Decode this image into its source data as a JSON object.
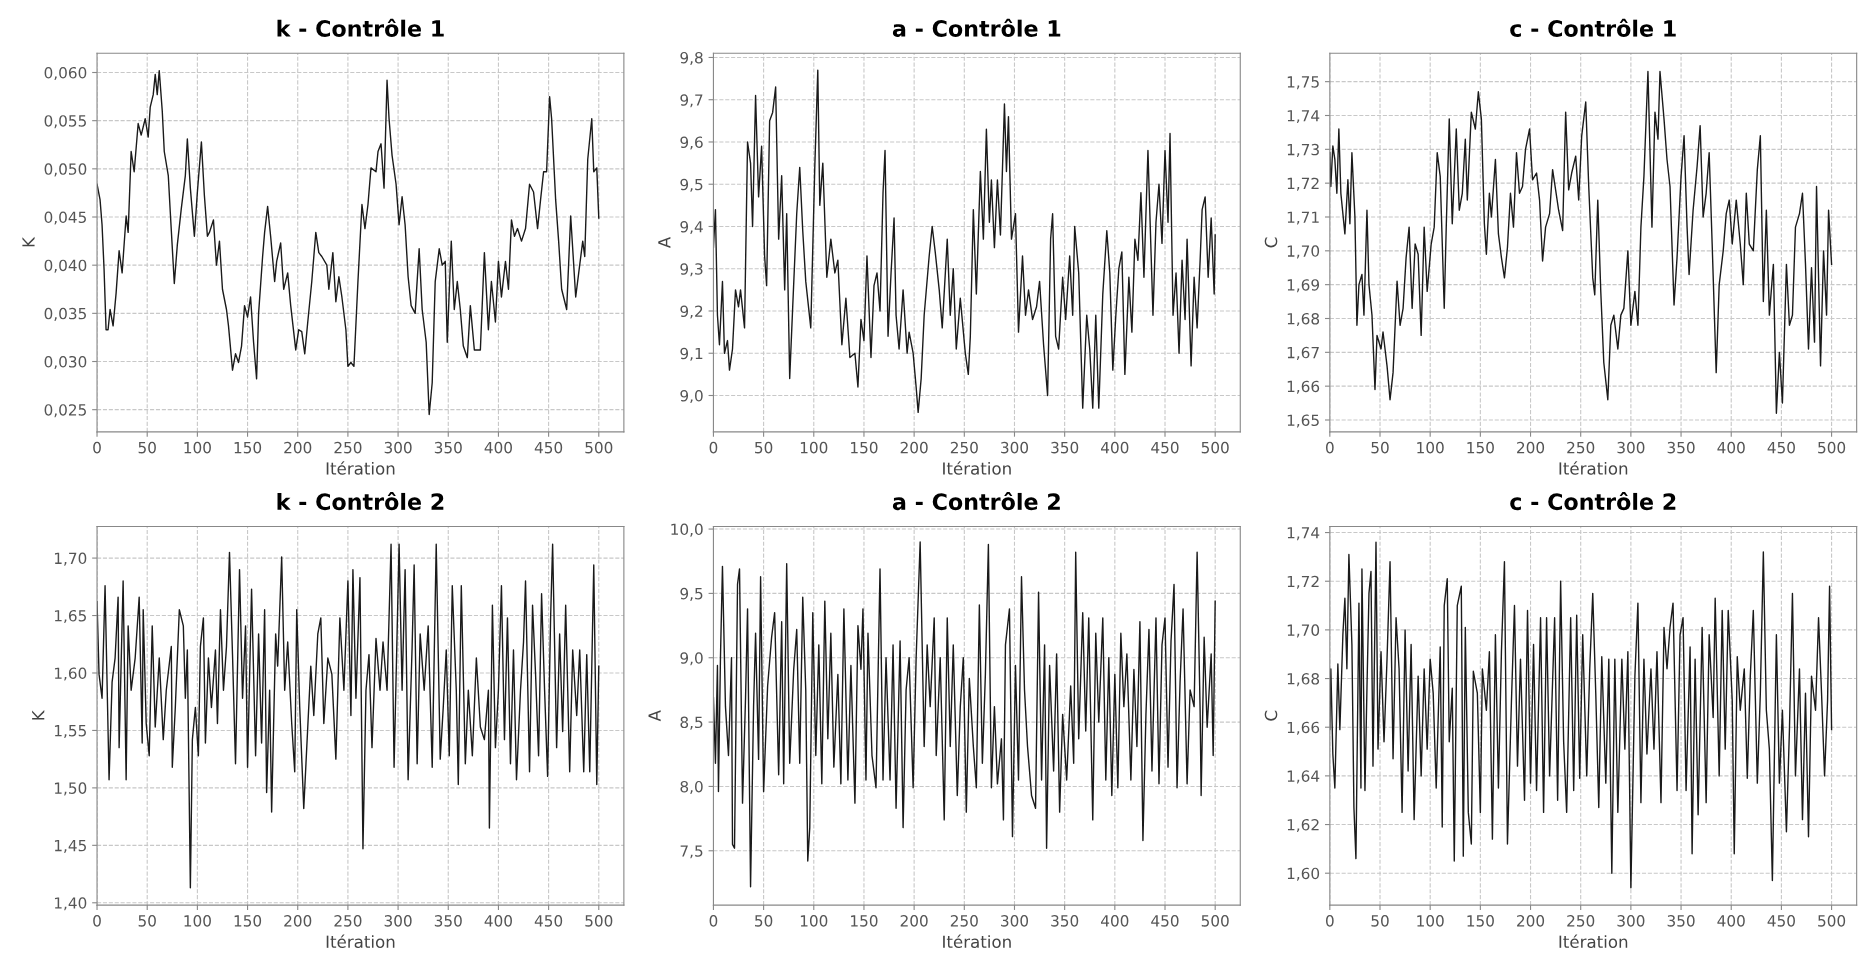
{
  "chart_data": [
    {
      "type": "line",
      "title": "k - Contrôle 1",
      "xlabel": "Itération",
      "ylabel": "K",
      "grid": true,
      "xlim": [
        0,
        525
      ],
      "xticks": [
        0,
        50,
        100,
        150,
        200,
        250,
        300,
        350,
        400,
        450,
        500
      ],
      "ylim": [
        0.0227,
        0.062
      ],
      "yticks": [
        {
          "value": 0.025,
          "label": "0,025"
        },
        {
          "value": 0.03,
          "label": "0,030"
        },
        {
          "value": 0.035,
          "label": "0,035"
        },
        {
          "value": 0.04,
          "label": "0,040"
        },
        {
          "value": 0.045,
          "label": "0,045"
        },
        {
          "value": 0.05,
          "label": "0,050"
        },
        {
          "value": 0.055,
          "label": "0,055"
        },
        {
          "value": 0.06,
          "label": "0,060"
        }
      ],
      "x": [
        0,
        3,
        5,
        7,
        9,
        11,
        13,
        16,
        19,
        22,
        25,
        29,
        31,
        34,
        37,
        41,
        44,
        48,
        51,
        53,
        56,
        58,
        60,
        62,
        65,
        67,
        71,
        73,
        77,
        80,
        84,
        88,
        90,
        93,
        97,
        100,
        104,
        107,
        110,
        112,
        116,
        119,
        122,
        125,
        129,
        131,
        135,
        138,
        141,
        144,
        147,
        150,
        153,
        156,
        159,
        161,
        165,
        167,
        170,
        173,
        177,
        179,
        183,
        186,
        190,
        193,
        198,
        201,
        204,
        207,
        210,
        214,
        218,
        221,
        224,
        229,
        231,
        235,
        238,
        241,
        244,
        248,
        250,
        253,
        256,
        260,
        264,
        267,
        270,
        273,
        278,
        280,
        283,
        286,
        289,
        291,
        294,
        298,
        301,
        304,
        307,
        310,
        313,
        317,
        321,
        324,
        328,
        331,
        334,
        337,
        341,
        344,
        347,
        349,
        353,
        356,
        359,
        362,
        365,
        369,
        372,
        376,
        380,
        382,
        386,
        390,
        393,
        397,
        400,
        403,
        407,
        410,
        413,
        416,
        419,
        423,
        427,
        431,
        435,
        439,
        442,
        445,
        448,
        451,
        453,
        457,
        460,
        463,
        468,
        472,
        477,
        480,
        484,
        486,
        489,
        493,
        495,
        498,
        500
      ],
      "series": [
        {
          "color": "#1a1a1a",
          "values": [
            0.0484,
            0.0468,
            0.0442,
            0.0396,
            0.0333,
            0.0333,
            0.0354,
            0.0337,
            0.0371,
            0.0415,
            0.0392,
            0.0451,
            0.0434,
            0.0518,
            0.0497,
            0.0547,
            0.0535,
            0.0552,
            0.0533,
            0.0564,
            0.0577,
            0.0598,
            0.0577,
            0.0602,
            0.056,
            0.0518,
            0.0493,
            0.0455,
            0.0381,
            0.0421,
            0.0459,
            0.0493,
            0.0531,
            0.048,
            0.043,
            0.0476,
            0.0528,
            0.0472,
            0.043,
            0.0434,
            0.0447,
            0.04,
            0.0425,
            0.0375,
            0.0354,
            0.0337,
            0.0291,
            0.0308,
            0.0299,
            0.0316,
            0.0358,
            0.0346,
            0.0367,
            0.032,
            0.0282,
            0.035,
            0.0409,
            0.0434,
            0.0461,
            0.043,
            0.0383,
            0.0404,
            0.0423,
            0.0375,
            0.0392,
            0.0358,
            0.0312,
            0.0333,
            0.0331,
            0.0308,
            0.0341,
            0.0383,
            0.0434,
            0.0413,
            0.0409,
            0.04,
            0.0375,
            0.0413,
            0.0362,
            0.0388,
            0.0367,
            0.0333,
            0.0295,
            0.0299,
            0.0295,
            0.0383,
            0.0463,
            0.0438,
            0.0463,
            0.0501,
            0.0497,
            0.0518,
            0.0526,
            0.048,
            0.0592,
            0.0552,
            0.0514,
            0.0484,
            0.0442,
            0.0471,
            0.0442,
            0.0388,
            0.0358,
            0.035,
            0.0417,
            0.0354,
            0.032,
            0.0245,
            0.0278,
            0.0383,
            0.0417,
            0.04,
            0.0404,
            0.032,
            0.0425,
            0.0354,
            0.0383,
            0.0354,
            0.0316,
            0.0304,
            0.0358,
            0.0312,
            0.0312,
            0.0312,
            0.0413,
            0.0333,
            0.0383,
            0.0341,
            0.0404,
            0.0367,
            0.0404,
            0.0375,
            0.0447,
            0.043,
            0.0438,
            0.0425,
            0.0438,
            0.0484,
            0.0476,
            0.0438,
            0.0468,
            0.0497,
            0.0497,
            0.0575,
            0.0552,
            0.0468,
            0.0425,
            0.0375,
            0.0354,
            0.0451,
            0.0367,
            0.0392,
            0.0425,
            0.0409,
            0.051,
            0.0552,
            0.0497,
            0.0501,
            0.0449
          ]
        }
      ]
    },
    {
      "type": "line",
      "title": "a - Contrôle 1",
      "xlabel": "Itération",
      "ylabel": "A",
      "grid": true,
      "xlim": [
        0,
        525
      ],
      "xticks": [
        0,
        50,
        100,
        150,
        200,
        250,
        300,
        350,
        400,
        450,
        500
      ],
      "ylim": [
        8.914,
        9.81
      ],
      "yticks": [
        {
          "value": 9.0,
          "label": "9,0"
        },
        {
          "value": 9.1,
          "label": "9,1"
        },
        {
          "value": 9.2,
          "label": "9,2"
        },
        {
          "value": 9.3,
          "label": "9,3"
        },
        {
          "value": 9.4,
          "label": "9,4"
        },
        {
          "value": 9.5,
          "label": "9,5"
        },
        {
          "value": 9.6,
          "label": "9,6"
        },
        {
          "value": 9.7,
          "label": "9,7"
        },
        {
          "value": 9.8,
          "label": "9,8"
        }
      ],
      "x": [
        0,
        2,
        4,
        6,
        9,
        11,
        14,
        16,
        19,
        22,
        25,
        27,
        31,
        34,
        37,
        39,
        42,
        45,
        48,
        51,
        53,
        56,
        59,
        62,
        65,
        68,
        71,
        73,
        76,
        79,
        83,
        86,
        89,
        92,
        97,
        101,
        104,
        106,
        109,
        113,
        117,
        121,
        124,
        128,
        132,
        136,
        141,
        144,
        147,
        150,
        153,
        157,
        160,
        163,
        166,
        169,
        171,
        174,
        177,
        180,
        182,
        185,
        189,
        193,
        195,
        199,
        202,
        204,
        207,
        210,
        215,
        218,
        221,
        225,
        228,
        233,
        236,
        239,
        242,
        246,
        251,
        254,
        256,
        259,
        262,
        266,
        269,
        272,
        275,
        277,
        280,
        283,
        286,
        290,
        292,
        294,
        297,
        301,
        304,
        308,
        311,
        314,
        318,
        322,
        325,
        329,
        333,
        336,
        338,
        341,
        344,
        348,
        351,
        355,
        358,
        360,
        364,
        368,
        372,
        375,
        378,
        381,
        384,
        388,
        392,
        395,
        398,
        401,
        404,
        407,
        410,
        414,
        417,
        420,
        423,
        426,
        429,
        433,
        438,
        441,
        444,
        447,
        450,
        453,
        455,
        458,
        461,
        464,
        467,
        470,
        472,
        476,
        479,
        482,
        485,
        487,
        490,
        493,
        496,
        499,
        500
      ],
      "series": [
        {
          "color": "#1a1a1a",
          "values": [
            9.35,
            9.44,
            9.19,
            9.12,
            9.27,
            9.1,
            9.13,
            9.06,
            9.11,
            9.25,
            9.21,
            9.25,
            9.16,
            9.6,
            9.55,
            9.4,
            9.71,
            9.47,
            9.59,
            9.33,
            9.26,
            9.65,
            9.67,
            9.73,
            9.37,
            9.52,
            9.25,
            9.43,
            9.04,
            9.21,
            9.43,
            9.54,
            9.39,
            9.27,
            9.16,
            9.54,
            9.77,
            9.45,
            9.55,
            9.28,
            9.37,
            9.29,
            9.32,
            9.12,
            9.23,
            9.09,
            9.1,
            9.02,
            9.18,
            9.13,
            9.33,
            9.09,
            9.26,
            9.29,
            9.2,
            9.48,
            9.58,
            9.14,
            9.29,
            9.42,
            9.19,
            9.11,
            9.25,
            9.1,
            9.15,
            9.1,
            9.02,
            8.96,
            9.04,
            9.19,
            9.33,
            9.4,
            9.34,
            9.25,
            9.16,
            9.37,
            9.19,
            9.3,
            9.11,
            9.23,
            9.1,
            9.05,
            9.14,
            9.44,
            9.24,
            9.53,
            9.37,
            9.63,
            9.41,
            9.51,
            9.35,
            9.51,
            9.38,
            9.69,
            9.53,
            9.66,
            9.37,
            9.43,
            9.15,
            9.33,
            9.19,
            9.25,
            9.18,
            9.21,
            9.27,
            9.12,
            9.0,
            9.37,
            9.43,
            9.14,
            9.11,
            9.28,
            9.18,
            9.33,
            9.19,
            9.4,
            9.29,
            8.97,
            9.19,
            9.11,
            8.97,
            9.19,
            8.97,
            9.24,
            9.39,
            9.29,
            9.06,
            9.19,
            9.3,
            9.34,
            9.05,
            9.28,
            9.15,
            9.37,
            9.32,
            9.48,
            9.28,
            9.58,
            9.19,
            9.41,
            9.5,
            9.36,
            9.58,
            9.41,
            9.62,
            9.19,
            9.29,
            9.1,
            9.32,
            9.18,
            9.37,
            9.07,
            9.28,
            9.16,
            9.32,
            9.44,
            9.47,
            9.28,
            9.42,
            9.24,
            9.38
          ]
        }
      ]
    },
    {
      "type": "line",
      "title": "c - Contrôle 1",
      "xlabel": "Itération",
      "ylabel": "C",
      "grid": true,
      "xlim": [
        0,
        525
      ],
      "xticks": [
        0,
        50,
        100,
        150,
        200,
        250,
        300,
        350,
        400,
        450,
        500
      ],
      "ylim": [
        1.6465,
        1.7584
      ],
      "yticks": [
        {
          "value": 1.65,
          "label": "1,65"
        },
        {
          "value": 1.66,
          "label": "1,66"
        },
        {
          "value": 1.67,
          "label": "1,67"
        },
        {
          "value": 1.68,
          "label": "1,68"
        },
        {
          "value": 1.69,
          "label": "1,69"
        },
        {
          "value": 1.7,
          "label": "1,70"
        },
        {
          "value": 1.71,
          "label": "1,71"
        },
        {
          "value": 1.72,
          "label": "1,72"
        },
        {
          "value": 1.73,
          "label": "1,73"
        },
        {
          "value": 1.74,
          "label": "1,74"
        },
        {
          "value": 1.75,
          "label": "1,75"
        }
      ],
      "x": [
        0,
        1,
        3,
        5,
        7,
        9,
        11,
        13,
        15,
        18,
        20,
        22,
        25,
        27,
        29,
        32,
        34,
        37,
        39,
        42,
        45,
        47,
        51,
        53,
        57,
        60,
        63,
        67,
        70,
        73,
        76,
        79,
        82,
        85,
        88,
        91,
        94,
        97,
        101,
        104,
        107,
        110,
        114,
        116,
        119,
        122,
        126,
        129,
        132,
        135,
        137,
        141,
        145,
        148,
        151,
        154,
        156,
        159,
        161,
        165,
        168,
        171,
        174,
        177,
        180,
        183,
        186,
        189,
        192,
        195,
        199,
        202,
        206,
        209,
        212,
        215,
        219,
        222,
        225,
        228,
        232,
        235,
        238,
        241,
        245,
        248,
        251,
        255,
        258,
        262,
        264,
        267,
        270,
        273,
        277,
        280,
        283,
        287,
        290,
        293,
        297,
        300,
        304,
        307,
        310,
        313,
        317,
        321,
        324,
        327,
        329,
        333,
        336,
        339,
        343,
        346,
        350,
        353,
        356,
        358,
        362,
        366,
        369,
        372,
        375,
        378,
        381,
        385,
        388,
        392,
        395,
        398,
        401,
        405,
        409,
        412,
        415,
        418,
        422,
        426,
        429,
        432,
        435,
        438,
        442,
        445,
        448,
        451,
        455,
        458,
        461,
        464,
        468,
        471,
        474,
        477,
        480,
        483,
        485,
        489,
        492,
        495,
        497,
        500
      ],
      "series": [
        {
          "color": "#1a1a1a",
          "values": [
            1.729,
            1.719,
            1.731,
            1.727,
            1.717,
            1.736,
            1.717,
            1.711,
            1.705,
            1.721,
            1.708,
            1.729,
            1.71,
            1.678,
            1.69,
            1.693,
            1.681,
            1.712,
            1.69,
            1.681,
            1.659,
            1.675,
            1.671,
            1.676,
            1.666,
            1.656,
            1.664,
            1.691,
            1.678,
            1.683,
            1.698,
            1.707,
            1.683,
            1.702,
            1.699,
            1.675,
            1.707,
            1.688,
            1.702,
            1.707,
            1.729,
            1.722,
            1.683,
            1.707,
            1.739,
            1.708,
            1.736,
            1.712,
            1.717,
            1.733,
            1.715,
            1.741,
            1.736,
            1.747,
            1.739,
            1.708,
            1.699,
            1.717,
            1.71,
            1.727,
            1.705,
            1.698,
            1.692,
            1.701,
            1.717,
            1.707,
            1.729,
            1.717,
            1.719,
            1.73,
            1.736,
            1.721,
            1.723,
            1.715,
            1.697,
            1.707,
            1.711,
            1.724,
            1.718,
            1.712,
            1.706,
            1.741,
            1.718,
            1.723,
            1.728,
            1.715,
            1.734,
            1.744,
            1.719,
            1.692,
            1.687,
            1.715,
            1.688,
            1.667,
            1.656,
            1.678,
            1.681,
            1.671,
            1.681,
            1.683,
            1.7,
            1.678,
            1.688,
            1.678,
            1.707,
            1.722,
            1.753,
            1.707,
            1.741,
            1.733,
            1.753,
            1.739,
            1.727,
            1.719,
            1.684,
            1.698,
            1.722,
            1.734,
            1.707,
            1.693,
            1.712,
            1.725,
            1.737,
            1.71,
            1.717,
            1.729,
            1.702,
            1.664,
            1.69,
            1.7,
            1.711,
            1.715,
            1.702,
            1.715,
            1.702,
            1.69,
            1.717,
            1.702,
            1.7,
            1.724,
            1.734,
            1.685,
            1.712,
            1.681,
            1.696,
            1.652,
            1.67,
            1.655,
            1.696,
            1.678,
            1.681,
            1.707,
            1.711,
            1.717,
            1.696,
            1.671,
            1.695,
            1.673,
            1.719,
            1.666,
            1.7,
            1.681,
            1.712,
            1.696
          ]
        }
      ]
    },
    {
      "type": "line",
      "title": "k - Contrôle 2",
      "xlabel": "Itération",
      "ylabel": "K",
      "grid": true,
      "xlim": [
        0,
        525
      ],
      "xticks": [
        0,
        50,
        100,
        150,
        200,
        250,
        300,
        350,
        400,
        450,
        500
      ],
      "ylim": [
        1.398,
        1.7275
      ],
      "yticks": [
        {
          "value": 1.4,
          "label": "1,40"
        },
        {
          "value": 1.45,
          "label": "1,45"
        },
        {
          "value": 1.5,
          "label": "1,50"
        },
        {
          "value": 1.55,
          "label": "1,55"
        },
        {
          "value": 1.6,
          "label": "1,60"
        },
        {
          "value": 1.65,
          "label": "1,65"
        },
        {
          "value": 1.7,
          "label": "1,70"
        }
      ],
      "x": [
        0,
        2,
        5,
        8,
        12,
        15,
        18,
        21,
        22,
        26,
        29,
        31,
        34,
        38,
        42,
        45,
        46,
        49,
        52,
        55,
        58,
        62,
        66,
        69,
        74,
        75,
        78,
        82,
        86,
        88,
        90,
        93,
        95,
        98,
        101,
        103,
        106,
        108,
        111,
        114,
        118,
        120,
        123,
        126,
        129,
        132,
        135,
        138,
        142,
        145,
        148,
        150,
        154,
        158,
        161,
        164,
        167,
        169,
        172,
        174,
        178,
        180,
        184,
        187,
        190,
        194,
        197,
        199,
        202,
        206,
        210,
        213,
        216,
        220,
        223,
        226,
        230,
        234,
        238,
        242,
        246,
        250,
        253,
        255,
        258,
        262,
        265,
        268,
        271,
        274,
        278,
        282,
        285,
        289,
        293,
        296,
        299,
        301,
        304,
        307,
        310,
        314,
        316,
        319,
        322,
        326,
        330,
        334,
        338,
        342,
        345,
        348,
        351,
        354,
        358,
        360,
        363,
        367,
        370,
        374,
        378,
        382,
        386,
        390,
        391,
        394,
        397,
        400,
        403,
        406,
        409,
        412,
        415,
        418,
        422,
        425,
        427,
        431,
        434,
        437,
        440,
        443,
        446,
        449,
        452,
        454,
        458,
        461,
        464,
        467,
        471,
        474,
        478,
        481,
        485,
        488,
        491,
        495,
        498,
        500
      ],
      "series": [
        {
          "color": "#1a1a1a",
          "values": [
            1.662,
            1.599,
            1.578,
            1.676,
            1.507,
            1.592,
            1.613,
            1.666,
            1.535,
            1.68,
            1.507,
            1.641,
            1.585,
            1.613,
            1.666,
            1.539,
            1.655,
            1.556,
            1.528,
            1.641,
            1.553,
            1.613,
            1.542,
            1.585,
            1.623,
            1.518,
            1.57,
            1.655,
            1.641,
            1.578,
            1.62,
            1.413,
            1.542,
            1.57,
            1.528,
            1.623,
            1.648,
            1.539,
            1.613,
            1.57,
            1.62,
            1.556,
            1.655,
            1.585,
            1.623,
            1.705,
            1.616,
            1.521,
            1.69,
            1.578,
            1.641,
            1.518,
            1.673,
            1.528,
            1.634,
            1.539,
            1.655,
            1.496,
            1.585,
            1.479,
            1.634,
            1.606,
            1.701,
            1.585,
            1.627,
            1.556,
            1.514,
            1.655,
            1.57,
            1.482,
            1.553,
            1.606,
            1.563,
            1.634,
            1.648,
            1.556,
            1.613,
            1.599,
            1.525,
            1.648,
            1.585,
            1.68,
            1.563,
            1.69,
            1.578,
            1.683,
            1.447,
            1.585,
            1.616,
            1.535,
            1.63,
            1.585,
            1.627,
            1.585,
            1.712,
            1.518,
            1.634,
            1.712,
            1.585,
            1.69,
            1.507,
            1.623,
            1.694,
            1.521,
            1.634,
            1.585,
            1.641,
            1.518,
            1.712,
            1.525,
            1.57,
            1.62,
            1.528,
            1.676,
            1.585,
            1.503,
            1.676,
            1.521,
            1.585,
            1.528,
            1.613,
            1.553,
            1.542,
            1.585,
            1.465,
            1.659,
            1.535,
            1.585,
            1.676,
            1.542,
            1.648,
            1.521,
            1.62,
            1.507,
            1.585,
            1.627,
            1.68,
            1.514,
            1.659,
            1.599,
            1.528,
            1.669,
            1.585,
            1.51,
            1.648,
            1.712,
            1.535,
            1.634,
            1.549,
            1.659,
            1.514,
            1.62,
            1.563,
            1.62,
            1.514,
            1.616,
            1.514,
            1.694,
            1.503,
            1.606
          ]
        }
      ]
    },
    {
      "type": "line",
      "title": "a - Contrôle 2",
      "xlabel": "Itération",
      "ylabel": "A",
      "grid": true,
      "xlim": [
        0,
        525
      ],
      "xticks": [
        0,
        50,
        100,
        150,
        200,
        250,
        300,
        350,
        400,
        450,
        500
      ],
      "ylim": [
        7.078,
        10.02
      ],
      "yticks": [
        {
          "value": 7.5,
          "label": "7,5"
        },
        {
          "value": 8.0,
          "label": "8,0"
        },
        {
          "value": 8.5,
          "label": "8,5"
        },
        {
          "value": 9.0,
          "label": "9,0"
        },
        {
          "value": 9.5,
          "label": "9,5"
        },
        {
          "value": 10.0,
          "label": "10,0"
        }
      ],
      "x": [
        0,
        2,
        4,
        5,
        7,
        9,
        12,
        15,
        18,
        19,
        21,
        24,
        26,
        29,
        32,
        34,
        37,
        40,
        42,
        45,
        47,
        50,
        54,
        58,
        61,
        65,
        68,
        70,
        73,
        76,
        80,
        83,
        86,
        89,
        92,
        94,
        96,
        99,
        102,
        105,
        108,
        111,
        114,
        117,
        120,
        124,
        127,
        130,
        134,
        137,
        141,
        144,
        147,
        149,
        152,
        154,
        158,
        162,
        166,
        169,
        172,
        176,
        179,
        182,
        186,
        189,
        192,
        195,
        199,
        202,
        206,
        210,
        213,
        216,
        220,
        222,
        226,
        230,
        233,
        236,
        239,
        243,
        246,
        249,
        252,
        255,
        259,
        262,
        265,
        268,
        271,
        274,
        277,
        280,
        283,
        287,
        289,
        291,
        295,
        298,
        301,
        304,
        307,
        310,
        313,
        317,
        321,
        324,
        327,
        330,
        332,
        335,
        339,
        342,
        345,
        348,
        352,
        356,
        359,
        361,
        364,
        368,
        371,
        374,
        378,
        381,
        384,
        388,
        391,
        394,
        397,
        400,
        403,
        406,
        409,
        412,
        416,
        419,
        422,
        425,
        428,
        431,
        434,
        437,
        441,
        444,
        447,
        450,
        453,
        456,
        459,
        462,
        465,
        468,
        472,
        475,
        479,
        482,
        485,
        486,
        489,
        492,
        496,
        498,
        500
      ],
      "series": [
        {
          "color": "#1a1a1a",
          "values": [
            8.69,
            8.18,
            8.94,
            7.96,
            9.0,
            9.71,
            8.62,
            8.24,
            9.0,
            7.55,
            7.52,
            9.57,
            9.69,
            7.87,
            8.69,
            9.38,
            7.22,
            8.62,
            9.19,
            8.21,
            9.63,
            7.96,
            8.78,
            9.16,
            9.35,
            8.09,
            9.28,
            8.02,
            9.73,
            8.18,
            8.91,
            9.22,
            8.18,
            9.47,
            8.75,
            7.42,
            7.68,
            9.35,
            8.24,
            9.1,
            8.02,
            9.44,
            8.37,
            9.19,
            8.15,
            8.87,
            8.02,
            9.38,
            8.05,
            8.94,
            7.87,
            9.25,
            8.91,
            9.38,
            8.05,
            9.19,
            8.24,
            7.99,
            9.69,
            8.05,
            9.0,
            8.05,
            9.1,
            7.83,
            9.13,
            7.68,
            8.75,
            9.0,
            7.99,
            9.0,
            9.9,
            8.31,
            9.1,
            8.62,
            9.31,
            8.24,
            9.0,
            7.74,
            9.31,
            8.31,
            9.1,
            7.93,
            8.62,
            9.0,
            7.8,
            8.84,
            8.31,
            7.99,
            9.41,
            8.18,
            8.87,
            9.88,
            7.99,
            8.62,
            8.02,
            8.37,
            7.74,
            9.1,
            9.38,
            7.61,
            8.94,
            8.05,
            9.63,
            8.75,
            8.31,
            7.93,
            7.83,
            9.51,
            8.05,
            9.1,
            7.52,
            8.94,
            8.12,
            9.03,
            7.8,
            8.56,
            8.05,
            8.78,
            8.18,
            9.82,
            8.37,
            9.35,
            8.43,
            9.31,
            7.74,
            9.19,
            8.5,
            9.31,
            8.05,
            9.0,
            7.93,
            8.87,
            7.99,
            9.19,
            8.62,
            9.03,
            8.05,
            8.91,
            8.31,
            9.28,
            7.58,
            8.56,
            9.22,
            8.12,
            9.31,
            8.02,
            9.1,
            9.31,
            8.15,
            9.13,
            9.57,
            7.99,
            8.81,
            9.38,
            8.02,
            8.75,
            8.62,
            9.82,
            8.59,
            7.93,
            9.16,
            8.46,
            9.03,
            8.24,
            9.44
          ]
        }
      ]
    },
    {
      "type": "line",
      "title": "c - Contrôle 2",
      "xlabel": "Itération",
      "ylabel": "C",
      "grid": true,
      "xlim": [
        0,
        525
      ],
      "xticks": [
        0,
        50,
        100,
        150,
        200,
        250,
        300,
        350,
        400,
        450,
        500
      ],
      "ylim": [
        1.5869,
        1.7425
      ],
      "yticks": [
        {
          "value": 1.6,
          "label": "1,60"
        },
        {
          "value": 1.62,
          "label": "1,62"
        },
        {
          "value": 1.64,
          "label": "1,64"
        },
        {
          "value": 1.66,
          "label": "1,66"
        },
        {
          "value": 1.68,
          "label": "1,68"
        },
        {
          "value": 1.7,
          "label": "1,70"
        },
        {
          "value": 1.72,
          "label": "1,72"
        },
        {
          "value": 1.74,
          "label": "1,74"
        }
      ],
      "x": [
        0,
        1,
        3,
        5,
        8,
        10,
        13,
        15,
        17,
        19,
        22,
        24,
        26,
        29,
        31,
        32,
        35,
        37,
        39,
        41,
        43,
        46,
        48,
        51,
        54,
        57,
        60,
        63,
        66,
        69,
        72,
        75,
        78,
        81,
        84,
        88,
        91,
        94,
        97,
        100,
        103,
        106,
        110,
        112,
        114,
        117,
        119,
        122,
        124,
        127,
        131,
        133,
        135,
        138,
        141,
        143,
        147,
        150,
        152,
        156,
        159,
        162,
        165,
        168,
        171,
        174,
        177,
        181,
        184,
        187,
        190,
        194,
        197,
        200,
        203,
        206,
        210,
        213,
        216,
        219,
        224,
        227,
        230,
        233,
        236,
        240,
        243,
        246,
        249,
        252,
        256,
        259,
        262,
        265,
        268,
        271,
        275,
        278,
        281,
        284,
        287,
        291,
        294,
        297,
        300,
        304,
        307,
        310,
        313,
        316,
        320,
        323,
        326,
        330,
        333,
        336,
        339,
        342,
        346,
        349,
        352,
        355,
        359,
        361,
        364,
        367,
        371,
        375,
        378,
        382,
        384,
        388,
        391,
        394,
        397,
        401,
        403,
        406,
        409,
        413,
        416,
        419,
        422,
        426,
        429,
        432,
        435,
        438,
        441,
        445,
        448,
        451,
        455,
        458,
        461,
        464,
        468,
        471,
        474,
        477,
        480,
        484,
        487,
        490,
        493,
        496,
        498,
        500
      ],
      "series": [
        {
          "color": "#1a1a1a",
          "values": [
            1.659,
            1.684,
            1.649,
            1.635,
            1.686,
            1.659,
            1.698,
            1.713,
            1.684,
            1.731,
            1.694,
            1.627,
            1.606,
            1.711,
            1.635,
            1.725,
            1.634,
            1.676,
            1.715,
            1.724,
            1.644,
            1.736,
            1.651,
            1.691,
            1.654,
            1.688,
            1.728,
            1.647,
            1.705,
            1.684,
            1.625,
            1.7,
            1.642,
            1.694,
            1.622,
            1.681,
            1.64,
            1.684,
            1.651,
            1.688,
            1.674,
            1.635,
            1.693,
            1.619,
            1.71,
            1.721,
            1.654,
            1.676,
            1.605,
            1.71,
            1.718,
            1.607,
            1.701,
            1.625,
            1.612,
            1.683,
            1.674,
            1.625,
            1.684,
            1.667,
            1.691,
            1.614,
            1.698,
            1.635,
            1.691,
            1.728,
            1.612,
            1.671,
            1.71,
            1.644,
            1.688,
            1.63,
            1.708,
            1.637,
            1.694,
            1.634,
            1.705,
            1.625,
            1.705,
            1.64,
            1.705,
            1.63,
            1.72,
            1.654,
            1.625,
            1.705,
            1.634,
            1.706,
            1.639,
            1.698,
            1.64,
            1.684,
            1.715,
            1.674,
            1.627,
            1.689,
            1.637,
            1.688,
            1.6,
            1.688,
            1.625,
            1.688,
            1.651,
            1.691,
            1.594,
            1.681,
            1.711,
            1.629,
            1.688,
            1.649,
            1.684,
            1.651,
            1.691,
            1.629,
            1.701,
            1.684,
            1.701,
            1.711,
            1.634,
            1.698,
            1.705,
            1.634,
            1.693,
            1.608,
            1.688,
            1.624,
            1.701,
            1.629,
            1.698,
            1.664,
            1.713,
            1.64,
            1.708,
            1.651,
            1.708,
            1.671,
            1.608,
            1.689,
            1.667,
            1.684,
            1.639,
            1.681,
            1.708,
            1.637,
            1.674,
            1.732,
            1.667,
            1.651,
            1.597,
            1.698,
            1.637,
            1.667,
            1.617,
            1.659,
            1.715,
            1.64,
            1.684,
            1.622,
            1.674,
            1.615,
            1.681,
            1.667,
            1.705,
            1.674,
            1.64,
            1.671,
            1.718,
            1.659
          ]
        }
      ]
    }
  ]
}
